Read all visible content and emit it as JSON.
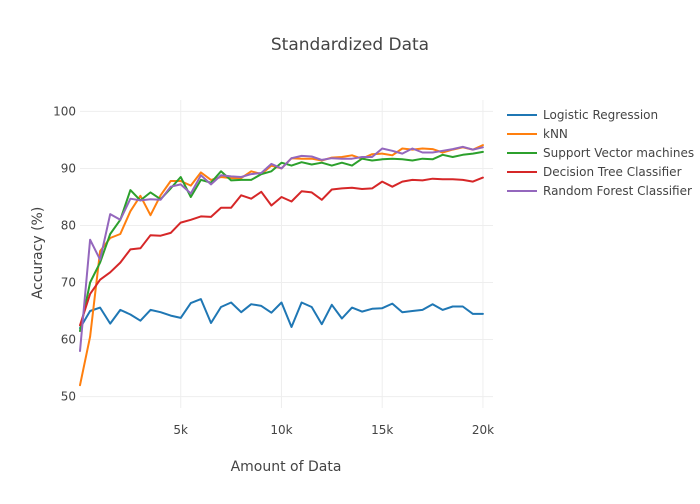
{
  "chart_data": {
    "type": "line",
    "title": "Standardized Data",
    "xlabel": "Amount of Data",
    "ylabel": "Accuracy (%)",
    "xlim": [
      0,
      20500
    ],
    "ylim": [
      48,
      102
    ],
    "x_ticks": [
      5000,
      10000,
      15000,
      20000
    ],
    "x_tick_labels": [
      "5k",
      "10k",
      "15k",
      "20k"
    ],
    "y_ticks": [
      50,
      60,
      70,
      80,
      90,
      100
    ],
    "y_tick_labels": [
      "50",
      "60",
      "70",
      "80",
      "90",
      "100"
    ],
    "grid": true,
    "legend_position": "right",
    "x": [
      0,
      500,
      1000,
      1500,
      2000,
      2500,
      3000,
      3500,
      4000,
      4500,
      5000,
      5500,
      6000,
      6500,
      7000,
      7500,
      8000,
      8500,
      9000,
      9500,
      10000,
      10500,
      11000,
      11500,
      12000,
      12500,
      13000,
      13500,
      14000,
      14500,
      15000,
      15500,
      16000,
      16500,
      17000,
      17500,
      18000,
      18500,
      19000,
      19500,
      20000
    ],
    "series": [
      {
        "name": "Logistic Regression",
        "color": "#1f77b4",
        "values": [
          62.0,
          65.0,
          65.6,
          62.8,
          65.2,
          64.4,
          63.3,
          65.2,
          64.8,
          64.2,
          63.8,
          66.4,
          67.1,
          62.9,
          65.7,
          66.5,
          64.8,
          66.2,
          65.9,
          64.7,
          66.5,
          62.2,
          66.5,
          65.7,
          62.7,
          66.1,
          63.7,
          65.6,
          64.9,
          65.4,
          65.5,
          66.3,
          64.8,
          65.0,
          65.2,
          66.2,
          65.2,
          65.8,
          65.8,
          64.5,
          64.5
        ]
      },
      {
        "name": "kNN",
        "color": "#ff7f0e",
        "values": [
          52.0,
          60.5,
          75.5,
          77.8,
          78.5,
          82.5,
          85.2,
          81.8,
          85.3,
          87.8,
          87.8,
          87.0,
          89.3,
          88.0,
          88.5,
          88.3,
          88.3,
          89.5,
          89.0,
          90.5,
          90.0,
          91.8,
          91.7,
          91.7,
          91.4,
          91.9,
          92.0,
          92.3,
          91.7,
          92.5,
          92.6,
          92.3,
          93.5,
          93.3,
          93.5,
          93.4,
          92.8,
          93.3,
          93.7,
          93.3,
          94.1
        ]
      },
      {
        "name": "Support Vector machines",
        "color": "#2ca02c",
        "values": [
          61.5,
          70.0,
          73.5,
          78.5,
          81.0,
          86.2,
          84.4,
          85.8,
          84.6,
          86.5,
          88.5,
          85.0,
          88.0,
          87.5,
          89.5,
          87.9,
          88.0,
          88.0,
          89.0,
          89.5,
          91.0,
          90.5,
          91.1,
          90.7,
          91.0,
          90.5,
          91.0,
          90.5,
          91.7,
          91.4,
          91.6,
          91.7,
          91.6,
          91.4,
          91.7,
          91.6,
          92.4,
          92.0,
          92.4,
          92.6,
          92.9
        ]
      },
      {
        "name": "Decision Tree Classifier",
        "color": "#d62728",
        "values": [
          62.5,
          68.0,
          70.5,
          71.8,
          73.5,
          75.8,
          76.0,
          78.3,
          78.2,
          78.7,
          80.5,
          81.0,
          81.6,
          81.5,
          83.1,
          83.1,
          85.3,
          84.7,
          85.9,
          83.5,
          85.0,
          84.2,
          86.0,
          85.8,
          84.5,
          86.3,
          86.5,
          86.6,
          86.4,
          86.5,
          87.7,
          86.8,
          87.7,
          88.0,
          87.9,
          88.2,
          88.1,
          88.1,
          88.0,
          87.7,
          88.4
        ]
      },
      {
        "name": "Random Forest Classifier",
        "color": "#9467bd",
        "values": [
          58.0,
          77.5,
          74.0,
          82.0,
          81.0,
          84.7,
          84.4,
          84.6,
          84.5,
          86.8,
          87.2,
          85.6,
          88.8,
          87.2,
          88.8,
          88.6,
          88.5,
          89.0,
          89.2,
          90.8,
          90.0,
          91.8,
          92.2,
          92.1,
          91.5,
          91.8,
          91.7,
          91.7,
          92.0,
          92.0,
          93.5,
          93.1,
          92.6,
          93.5,
          92.8,
          92.8,
          93.1,
          93.4,
          93.8,
          93.3,
          93.7
        ]
      }
    ]
  }
}
